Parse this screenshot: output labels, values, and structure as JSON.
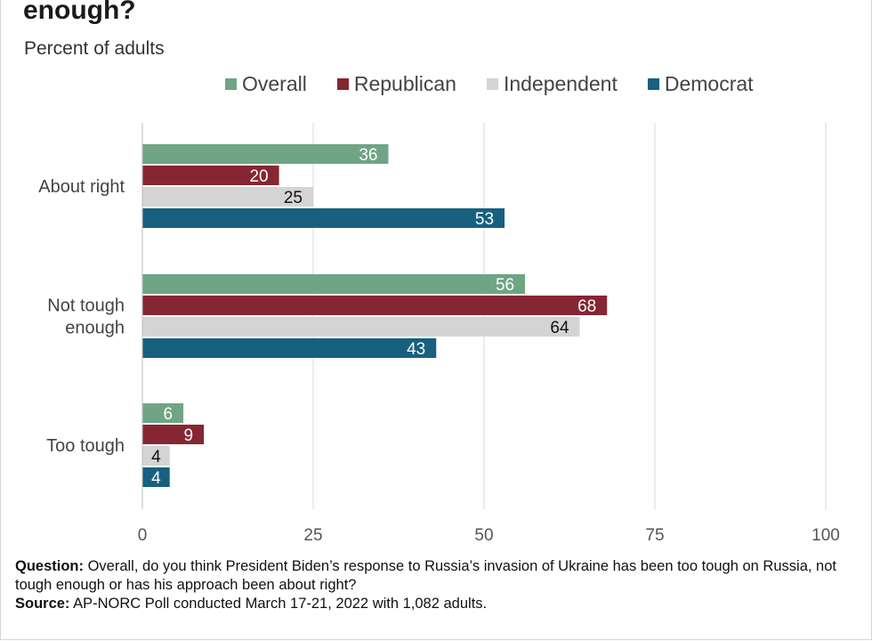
{
  "title": "enough?",
  "subtitle": "Percent of adults",
  "colors": {
    "Overall": "#6fa584",
    "Republican": "#862633",
    "Independent": "#d4d4d4",
    "Democrat": "#18607f"
  },
  "footnote": {
    "question_label": "Question:",
    "question_text": " Overall, do you think President Biden’s response to Russia’s invasion of Ukraine has been too tough on Russia, not tough enough or has his approach been about right?",
    "source_label": "Source:",
    "source_text": " AP-NORC Poll conducted March 17-21, 2022 with 1,082 adults."
  },
  "chart_data": {
    "type": "bar",
    "orientation": "horizontal",
    "categories": [
      "About right",
      "Not tough enough",
      "Too tough"
    ],
    "series": [
      {
        "name": "Overall",
        "values": [
          36,
          56,
          6
        ]
      },
      {
        "name": "Republican",
        "values": [
          20,
          68,
          9
        ]
      },
      {
        "name": "Independent",
        "values": [
          25,
          64,
          4
        ]
      },
      {
        "name": "Democrat",
        "values": [
          53,
          43,
          4
        ]
      }
    ],
    "xlim": [
      0,
      100
    ],
    "xticks": [
      0,
      25,
      50,
      75,
      100
    ],
    "grid": true,
    "legend_position": "top"
  }
}
